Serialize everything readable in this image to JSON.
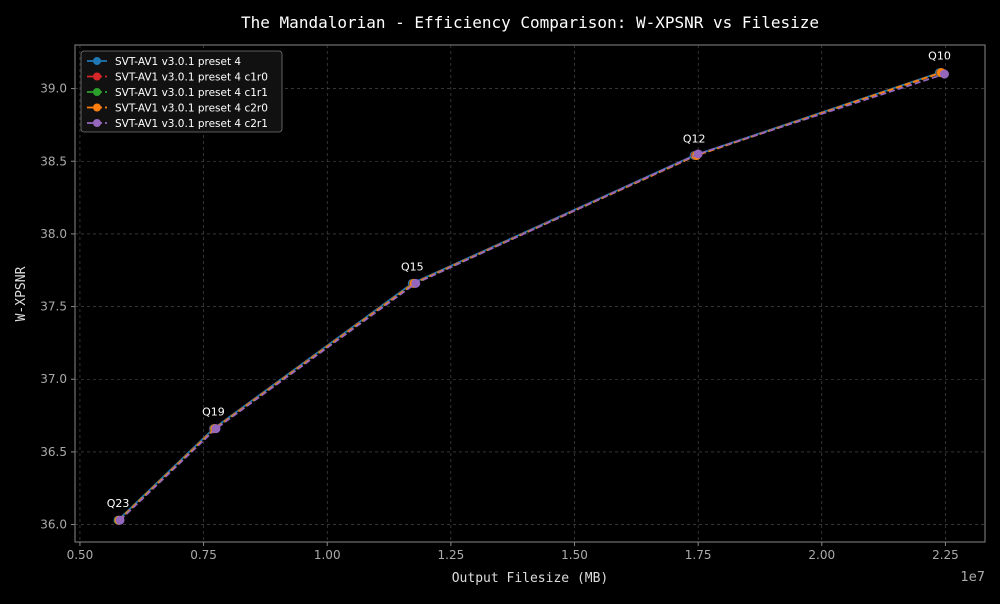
{
  "chart_data": {
    "type": "line",
    "title": "The Mandalorian - Efficiency Comparison: W-XPSNR vs Filesize",
    "xlabel": "Output Filesize (MB)",
    "ylabel": "W-XPSNR",
    "x_offset_label": "1e7",
    "x_scale_multiplier": 10000000,
    "xlim": [
      0.49,
      2.33
    ],
    "ylim": [
      35.88,
      39.3
    ],
    "xticks": [
      0.5,
      0.75,
      1.0,
      1.25,
      1.5,
      1.75,
      2.0,
      2.25
    ],
    "xtick_labels": [
      "0.50",
      "0.75",
      "1.00",
      "1.25",
      "1.50",
      "1.75",
      "2.00",
      "2.25"
    ],
    "yticks": [
      36.0,
      36.5,
      37.0,
      37.5,
      38.0,
      38.5,
      39.0
    ],
    "ytick_labels": [
      "36.0",
      "36.5",
      "37.0",
      "37.5",
      "38.0",
      "38.5",
      "39.0"
    ],
    "grid": true,
    "legend_position": "top-left",
    "series": [
      {
        "name": "SVT-AV1 v3.0.1 preset 4",
        "color": "#1f77b4",
        "dash": "none",
        "x": [
          0.577,
          0.77,
          1.172,
          1.742,
          2.238
        ],
        "y": [
          36.03,
          36.66,
          37.66,
          38.54,
          39.11
        ]
      },
      {
        "name": "SVT-AV1 v3.0.1 preset 4 c1r0",
        "color": "#d62728",
        "dash": "6,3",
        "x": [
          0.578,
          0.771,
          1.174,
          1.744,
          2.24
        ],
        "y": [
          36.03,
          36.66,
          37.66,
          38.54,
          39.11
        ]
      },
      {
        "name": "SVT-AV1 v3.0.1 preset 4 c1r1",
        "color": "#2ca02c",
        "dash": "6,3",
        "x": [
          0.578,
          0.772,
          1.175,
          1.746,
          2.241
        ],
        "y": [
          36.03,
          36.66,
          37.66,
          38.54,
          39.11
        ]
      },
      {
        "name": "SVT-AV1 v3.0.1 preset 4 c2r0",
        "color": "#ff7f0e",
        "dash": "6,3",
        "x": [
          0.579,
          0.773,
          1.176,
          1.747,
          2.242
        ],
        "y": [
          36.03,
          36.66,
          37.66,
          38.54,
          39.11
        ]
      },
      {
        "name": "SVT-AV1 v3.0.1 preset 4 c2r1",
        "color": "#9467bd",
        "dash": "6,3",
        "x": [
          0.581,
          0.775,
          1.179,
          1.75,
          2.248
        ],
        "y": [
          36.03,
          36.66,
          37.66,
          38.55,
          39.1
        ]
      }
    ],
    "annotations": [
      {
        "text": "Q23",
        "x": 0.577,
        "y": 36.03
      },
      {
        "text": "Q19",
        "x": 0.77,
        "y": 36.66
      },
      {
        "text": "Q15",
        "x": 1.172,
        "y": 37.66
      },
      {
        "text": "Q12",
        "x": 1.742,
        "y": 38.54
      },
      {
        "text": "Q10",
        "x": 2.238,
        "y": 39.11
      }
    ]
  }
}
